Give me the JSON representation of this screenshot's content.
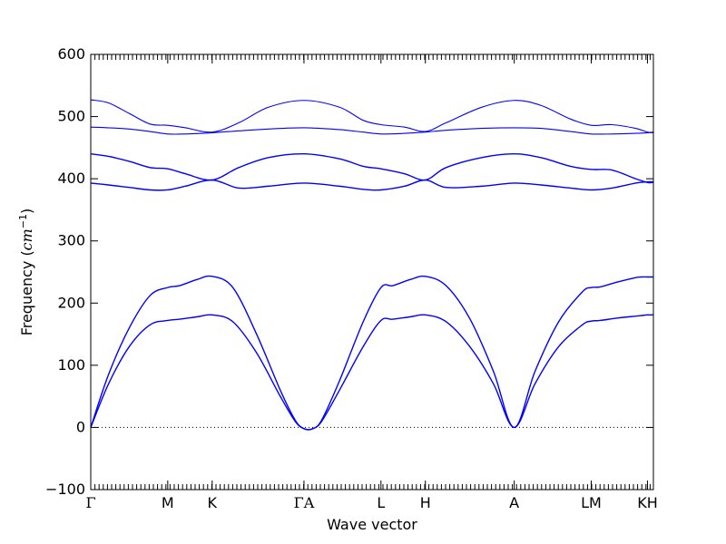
{
  "chart_data": {
    "type": "line",
    "title": "",
    "xlabel": "Wave vector",
    "ylabel_main": "Frequency (",
    "ylabel_unit": "cm",
    "ylabel_exp": "−1",
    "ylabel_close": ")",
    "ylim": [
      -100,
      600
    ],
    "yticks": [
      -100,
      0,
      100,
      200,
      300,
      400,
      500,
      600
    ],
    "xlim": [
      0,
      9.5
    ],
    "zero_line": true,
    "grid": false,
    "legend": "none",
    "line_color": "#0000ff",
    "high_symmetry_points": [
      {
        "label": "Γ",
        "x": 0
      },
      {
        "label": "M",
        "x": 1.3
      },
      {
        "label": "K",
        "x": 2.05
      },
      {
        "label": "ΓA",
        "x": 3.6
      },
      {
        "label": "L",
        "x": 4.9
      },
      {
        "label": "H",
        "x": 5.65
      },
      {
        "label": "A",
        "x": 7.15
      },
      {
        "label": "LM",
        "x": 8.45
      },
      {
        "label": "KH",
        "x": 9.4
      }
    ],
    "series": [
      {
        "x": [
          0,
          0.3,
          0.65,
          1.0,
          1.3,
          1.5,
          1.8,
          2.05,
          2.4,
          2.8,
          3.2,
          3.45,
          3.6,
          3.75,
          3.9,
          4.2,
          4.6,
          4.9,
          5.1,
          5.4,
          5.65,
          6.0,
          6.4,
          6.8,
          7.15,
          7.5,
          7.9,
          8.3,
          8.45,
          8.6,
          8.9,
          9.2,
          9.3,
          9.4,
          9.5
        ],
        "values": [
          0,
          70,
          130,
          165,
          172,
          174,
          178,
          181,
          170,
          120,
          50,
          10,
          -2,
          -2,
          10,
          60,
          130,
          172,
          174,
          178,
          181,
          170,
          130,
          70,
          0,
          70,
          130,
          165,
          171,
          172,
          176,
          179,
          180,
          181,
          181
        ]
      },
      {
        "x": [
          0,
          0.3,
          0.65,
          1.0,
          1.3,
          1.5,
          1.8,
          2.05,
          2.4,
          2.8,
          3.2,
          3.45,
          3.6,
          3.75,
          3.9,
          4.2,
          4.6,
          4.9,
          5.1,
          5.4,
          5.65,
          6.0,
          6.4,
          6.8,
          7.15,
          7.5,
          7.9,
          8.3,
          8.45,
          8.6,
          8.9,
          9.2,
          9.3,
          9.4,
          9.5
        ],
        "values": [
          0,
          85,
          160,
          212,
          225,
          228,
          238,
          243,
          225,
          150,
          60,
          12,
          -2,
          -2,
          12,
          75,
          170,
          225,
          228,
          238,
          243,
          228,
          175,
          90,
          0,
          90,
          170,
          218,
          225,
          226,
          234,
          241,
          242,
          242,
          242
        ]
      },
      {
        "x": [
          0,
          0.3,
          0.65,
          1.0,
          1.3,
          1.6,
          2.05,
          2.5,
          3.0,
          3.6,
          4.2,
          4.6,
          4.9,
          5.3,
          5.65,
          6.0,
          6.6,
          7.15,
          7.6,
          8.1,
          8.45,
          8.8,
          9.2,
          9.4,
          9.5
        ],
        "values": [
          393,
          390,
          386,
          382,
          382,
          388,
          398,
          385,
          388,
          393,
          388,
          383,
          382,
          388,
          398,
          386,
          388,
          393,
          390,
          385,
          382,
          385,
          393,
          395,
          395
        ]
      },
      {
        "x": [
          0,
          0.3,
          0.65,
          1.0,
          1.3,
          1.6,
          2.05,
          2.5,
          3.0,
          3.6,
          4.2,
          4.6,
          4.9,
          5.3,
          5.65,
          6.0,
          6.6,
          7.15,
          7.6,
          8.1,
          8.45,
          8.8,
          9.2,
          9.4,
          9.5
        ],
        "values": [
          440,
          436,
          428,
          418,
          416,
          408,
          398,
          418,
          434,
          440,
          432,
          420,
          416,
          408,
          398,
          418,
          434,
          440,
          434,
          420,
          415,
          414,
          400,
          394,
          394
        ]
      },
      {
        "x": [
          0,
          0.3,
          0.65,
          1.0,
          1.3,
          1.6,
          2.05,
          2.5,
          3.0,
          3.6,
          4.2,
          4.6,
          4.9,
          5.3,
          5.65,
          6.0,
          6.6,
          7.15,
          7.6,
          8.1,
          8.45,
          8.8,
          9.2,
          9.4,
          9.5
        ],
        "values": [
          483,
          482,
          480,
          476,
          472,
          472,
          474,
          477,
          480,
          482,
          479,
          475,
          472,
          473,
          475,
          478,
          481,
          482,
          481,
          476,
          472,
          472,
          473,
          474,
          474
        ]
      },
      {
        "x": [
          0,
          0.3,
          0.65,
          1.0,
          1.3,
          1.6,
          2.05,
          2.5,
          3.0,
          3.6,
          4.2,
          4.6,
          4.9,
          5.3,
          5.65,
          6.0,
          6.6,
          7.15,
          7.6,
          8.1,
          8.45,
          8.8,
          9.2,
          9.4,
          9.5
        ],
        "values": [
          527,
          522,
          505,
          488,
          486,
          482,
          475,
          490,
          515,
          526,
          515,
          494,
          487,
          483,
          476,
          490,
          515,
          526,
          518,
          496,
          486,
          487,
          481,
          475,
          475
        ]
      }
    ]
  }
}
